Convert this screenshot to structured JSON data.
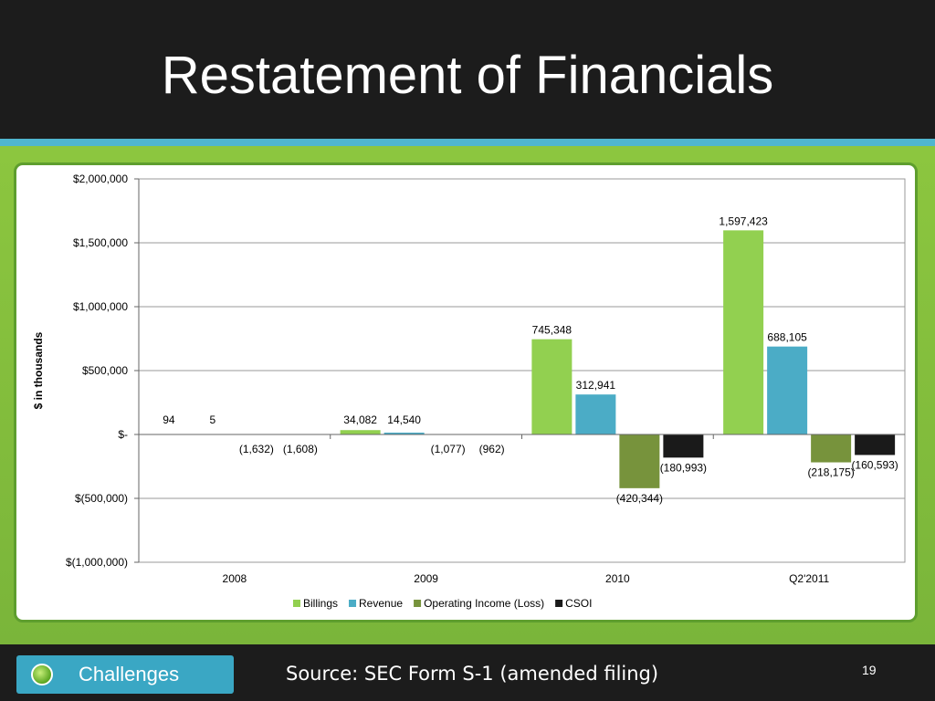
{
  "slide": {
    "title": "Restatement of Financials",
    "nav_button_label": "Challenges",
    "source_note": "Source: SEC Form S-1 (amended filing)",
    "page_number": "19"
  },
  "colors": {
    "billings": "#92d050",
    "revenue": "#4bacc6",
    "operating_income": "#77933c",
    "csoi": "#1a1a1a",
    "accent_stripe": "#4fb6cf",
    "background_green": "#8cc63f"
  },
  "chart_data": {
    "type": "bar",
    "title": "",
    "xlabel": "",
    "ylabel": "$ in thousands",
    "ylim": [
      -1000000,
      2000000
    ],
    "yticks": [
      2000000,
      1500000,
      1000000,
      500000,
      0,
      -500000,
      -1000000
    ],
    "ytick_labels": [
      "$2,000,000",
      "$1,500,000",
      "$1,000,000",
      "$500,000",
      "$-",
      "$(500,000)",
      "$(1,000,000)"
    ],
    "categories": [
      "2008",
      "2009",
      "2010",
      "Q2'2011"
    ],
    "grid": "horizontal",
    "legend_position": "bottom",
    "series": [
      {
        "name": "Billings",
        "values": [
          94,
          34082,
          745348,
          1597423
        ],
        "labels": [
          "94",
          "34,082",
          "745,348",
          "1,597,423"
        ]
      },
      {
        "name": "Revenue",
        "values": [
          5,
          14540,
          312941,
          688105
        ],
        "labels": [
          "5",
          "14,540",
          "312,941",
          "688,105"
        ]
      },
      {
        "name": "Operating Income (Loss)",
        "values": [
          -1632,
          -1077,
          -420344,
          -218175
        ],
        "labels": [
          "(1,632)",
          "(1,077)",
          "(420,344)",
          "(218,175)"
        ]
      },
      {
        "name": "CSOI",
        "values": [
          -1608,
          -962,
          -180993,
          -160593
        ],
        "labels": [
          "(1,608)",
          "(962)",
          "(180,993)",
          "(160,593)"
        ]
      }
    ]
  }
}
